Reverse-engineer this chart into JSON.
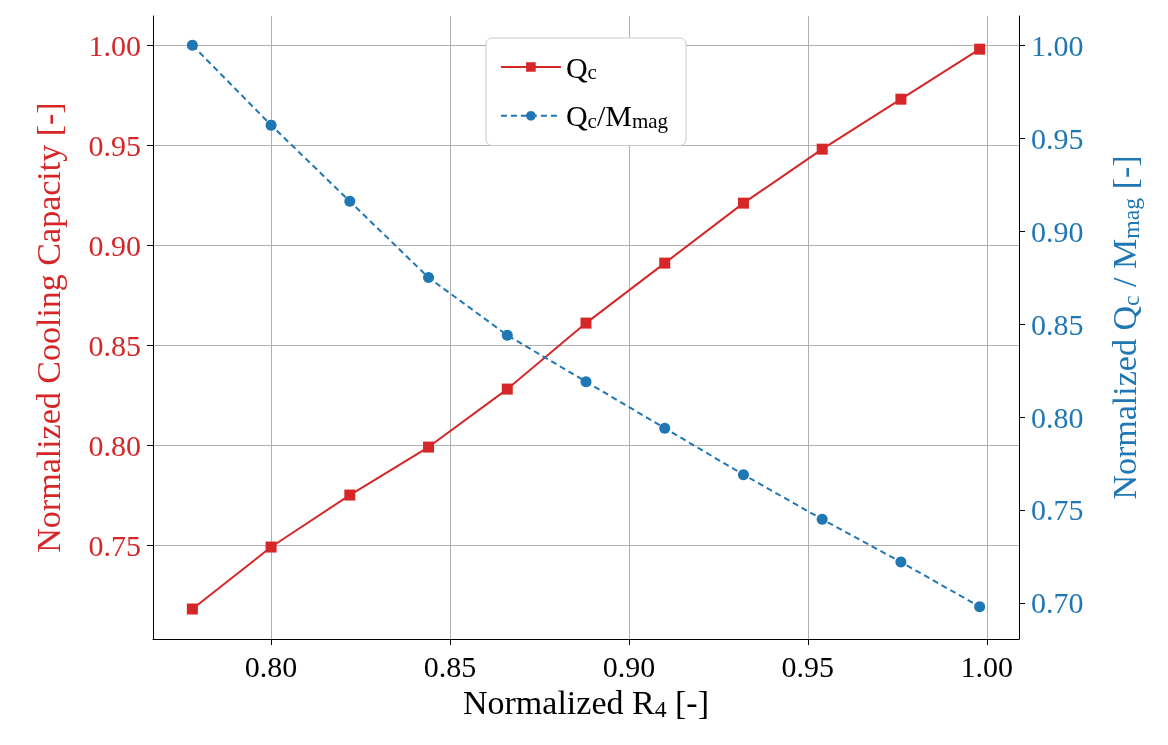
{
  "chart_data": {
    "type": "line",
    "xlabel": "Normalized R$_{4}$ [-]",
    "ylabel": "Normalized Cooling Capacity [-]",
    "y2label": "Normalized Q$_{c}$ / M$_{mag}$ [-]",
    "x": [
      0.778,
      0.8,
      0.822,
      0.844,
      0.866,
      0.888,
      0.91,
      0.932,
      0.954,
      0.976,
      0.998
    ],
    "series": [
      {
        "name": "Q$_{c}$",
        "color": "#d62728",
        "marker": "square",
        "line_style": "solid",
        "axis": "y",
        "values": [
          0.718,
          0.749,
          0.775,
          0.799,
          0.828,
          0.861,
          0.891,
          0.921,
          0.948,
          0.973,
          0.998
        ]
      },
      {
        "name": "Q$_{c}$/M$_{mag}$",
        "color": "#1f77b4",
        "marker": "circle",
        "line_style": "dashed",
        "axis": "y2",
        "values": [
          1.0,
          0.957,
          0.916,
          0.875,
          0.844,
          0.819,
          0.794,
          0.769,
          0.745,
          0.722,
          0.698
        ]
      }
    ],
    "xlim": [
      0.767,
      1.009
    ],
    "xticks": [
      {
        "value": 0.8,
        "label": "0.80"
      },
      0.85,
      {
        "value": 0.9,
        "label": "0.90"
      },
      0.95,
      {
        "value": 1,
        "label": "1.00"
      }
    ],
    "ylim": [
      0.703,
      1.0146
    ],
    "yticks": [
      0.75,
      {
        "value": 0.8,
        "label": "0.80"
      },
      0.85,
      {
        "value": 0.9,
        "label": "0.90"
      },
      0.95,
      {
        "value": 1,
        "label": "1.00"
      }
    ],
    "y2lim": [
      0.6806,
      1.0157
    ],
    "y2ticks": [
      {
        "value": 0.7,
        "label": "0.70"
      },
      0.75,
      {
        "value": 0.8,
        "label": "0.80"
      },
      0.85,
      {
        "value": 0.9,
        "label": "0.90"
      },
      0.95,
      {
        "value": 1,
        "label": "1.00"
      }
    ],
    "grid": true,
    "legend": "top"
  }
}
